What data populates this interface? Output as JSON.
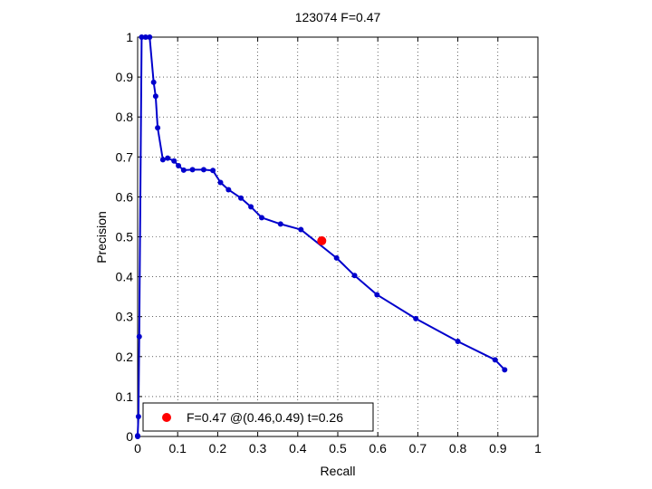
{
  "chart_data": {
    "type": "line",
    "title": "123074 F=0.47",
    "xlabel": "Recall",
    "ylabel": "Precision",
    "xlim": [
      0,
      1
    ],
    "ylim": [
      0,
      1
    ],
    "grid": true,
    "xticks": [
      "0",
      "0.1",
      "0.2",
      "0.3",
      "0.4",
      "0.5",
      "0.6",
      "0.7",
      "0.8",
      "0.9",
      "1"
    ],
    "yticks": [
      "0",
      "0.1",
      "0.2",
      "0.3",
      "0.4",
      "0.5",
      "0.6",
      "0.7",
      "0.8",
      "0.9",
      "1"
    ],
    "series": [
      {
        "color": "#0000cc",
        "points": [
          [
            0.0,
            0.0
          ],
          [
            0.0,
            0.002
          ],
          [
            0.002,
            0.05
          ],
          [
            0.004,
            0.25
          ],
          [
            0.01,
            1.0
          ],
          [
            0.02,
            1.0
          ],
          [
            0.03,
            1.0
          ],
          [
            0.04,
            0.887
          ],
          [
            0.045,
            0.852
          ],
          [
            0.05,
            0.773
          ],
          [
            0.063,
            0.693
          ],
          [
            0.075,
            0.697
          ],
          [
            0.091,
            0.69
          ],
          [
            0.102,
            0.678
          ],
          [
            0.115,
            0.667
          ],
          [
            0.137,
            0.668
          ],
          [
            0.165,
            0.668
          ],
          [
            0.188,
            0.666
          ],
          [
            0.207,
            0.636
          ],
          [
            0.227,
            0.618
          ],
          [
            0.258,
            0.597
          ],
          [
            0.283,
            0.575
          ],
          [
            0.31,
            0.548
          ],
          [
            0.357,
            0.532
          ],
          [
            0.408,
            0.518
          ],
          [
            0.497,
            0.447
          ],
          [
            0.542,
            0.403
          ],
          [
            0.598,
            0.355
          ],
          [
            0.695,
            0.295
          ],
          [
            0.8,
            0.238
          ],
          [
            0.893,
            0.192
          ],
          [
            0.917,
            0.167
          ]
        ]
      }
    ],
    "highlight": {
      "x": 0.46,
      "y": 0.49,
      "color": "#ff0000"
    },
    "legend": {
      "label": "F=0.47 @(0.46,0.49) t=0.26",
      "position": "bottom-left",
      "marker_color": "#ff0000"
    }
  }
}
